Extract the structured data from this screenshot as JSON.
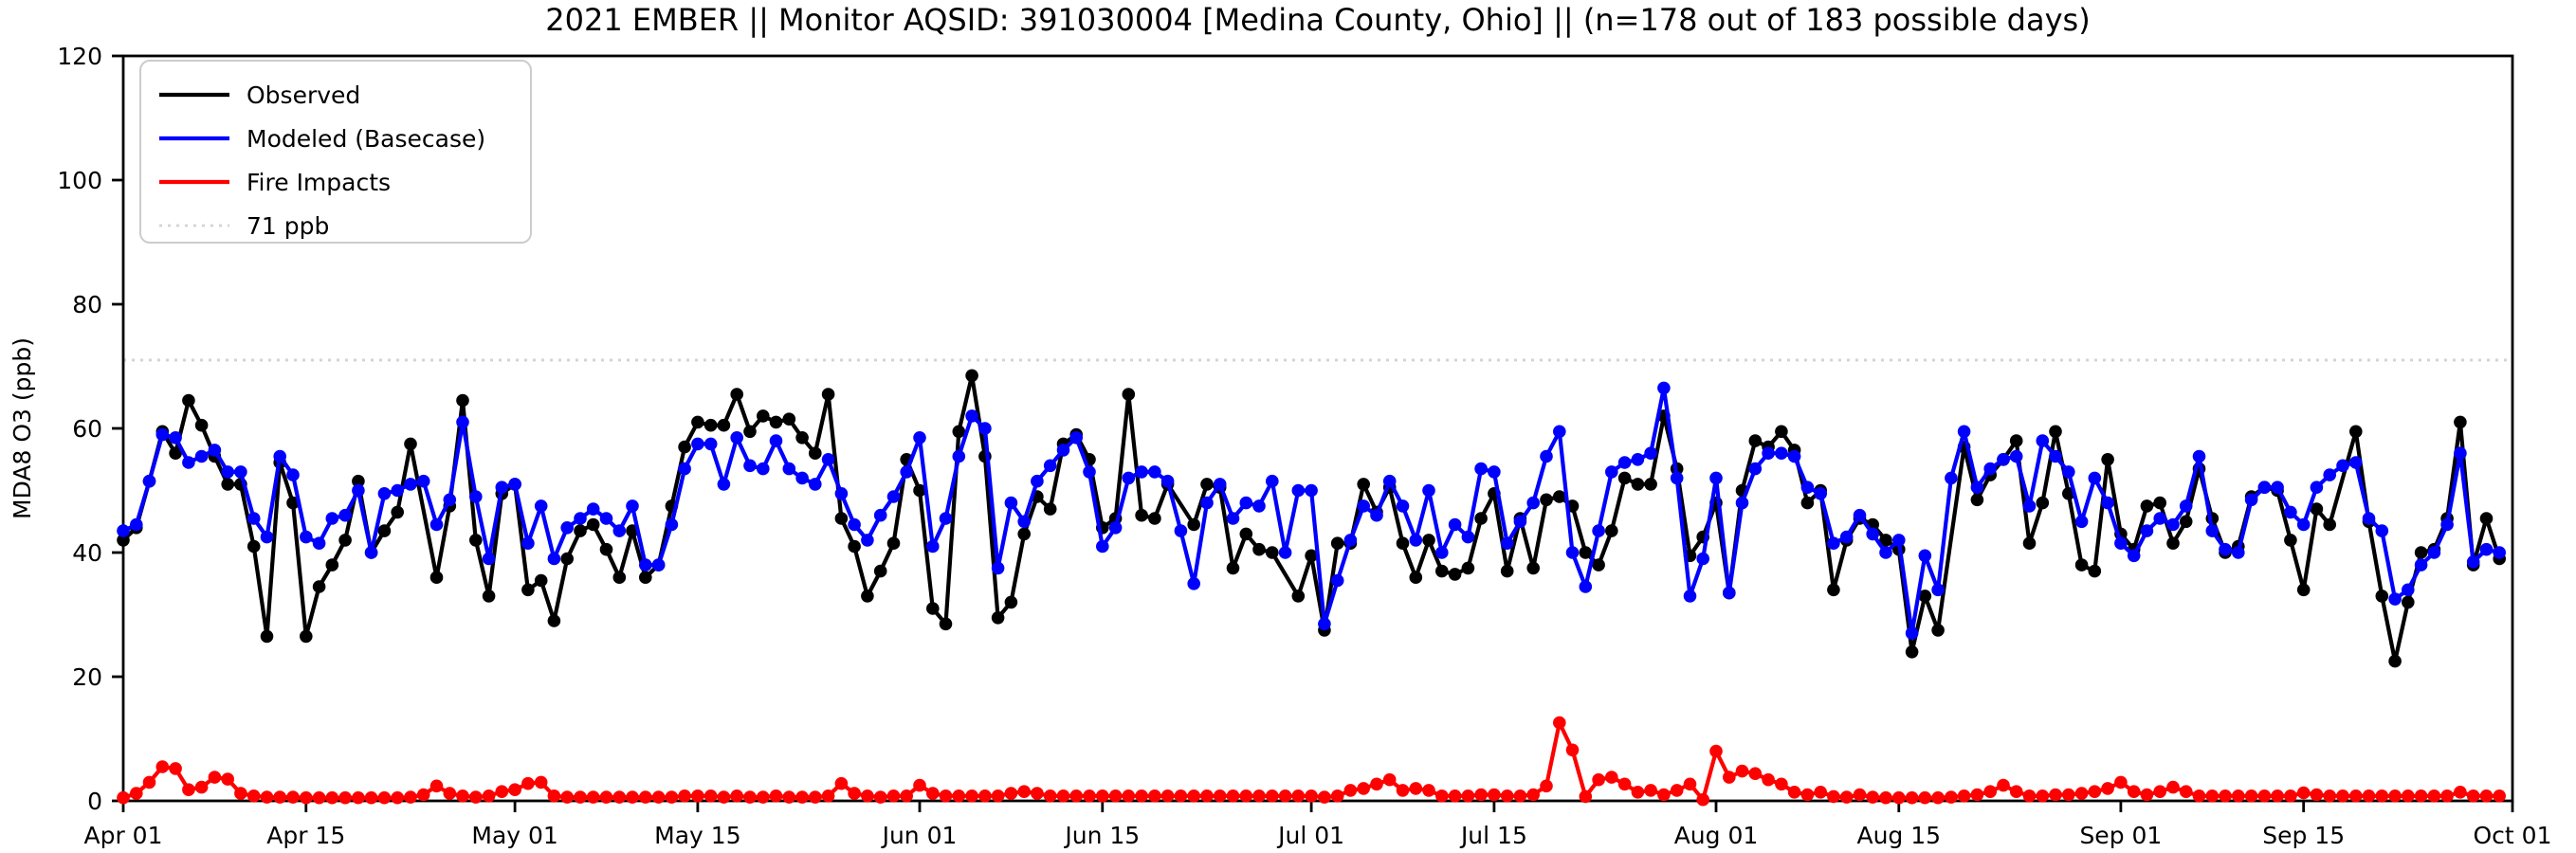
{
  "figure": {
    "title": "2021 EMBER || Monitor AQSID: 391030004 [Medina County, Ohio] || (n=178 out of 183 possible days)",
    "background_color": "#ffffff"
  },
  "chart_data": {
    "type": "line",
    "title": "2021 EMBER || Monitor AQSID: 391030004 [Medina County, Ohio] || (n=178 out of 183 possible days)",
    "xlabel": "",
    "ylabel": "MDA8 O3 (ppb)",
    "ylim": [
      0,
      120
    ],
    "yticks": [
      0,
      20,
      40,
      60,
      80,
      100,
      120
    ],
    "x_range_days": [
      0,
      183
    ],
    "x_tick_days": [
      0,
      14,
      30,
      44,
      61,
      75,
      91,
      105,
      122,
      136,
      153,
      167,
      183
    ],
    "x_tick_labels": [
      "Apr 01",
      "Apr 15",
      "May 01",
      "May 15",
      "Jun 01",
      "Jun 15",
      "Jul 01",
      "Jul 15",
      "Aug 01",
      "Aug 15",
      "Sep 01",
      "Sep 15",
      "Oct 01"
    ],
    "grid": false,
    "legend_position": "upper left",
    "threshold": {
      "label": "71 ppb",
      "value": 71,
      "color": "#d3d3d3",
      "style": "dotted"
    },
    "observed_days_note": {
      "n_observed": 178,
      "n_possible": 183
    },
    "series": [
      {
        "name": "Observed",
        "color": "#000000",
        "marker": "circle",
        "values": [
          42,
          44,
          51.5,
          59.5,
          56,
          64.5,
          60.5,
          55.5,
          51,
          51,
          41,
          26.5,
          54.5,
          48,
          26.5,
          34.5,
          38,
          42,
          51.5,
          40,
          43.5,
          46.5,
          57.5,
          null,
          36,
          47.5,
          64.5,
          42,
          33,
          49.5,
          51,
          34,
          35.5,
          29,
          39,
          43.5,
          44.5,
          40.5,
          36,
          43.5,
          36,
          38,
          47.5,
          57,
          61,
          60.5,
          60.5,
          65.5,
          59.5,
          62,
          61,
          61.5,
          58.5,
          56,
          65.5,
          45.5,
          41,
          33,
          37,
          41.5,
          55,
          50,
          31,
          28.5,
          59.5,
          68.5,
          55.5,
          29.5,
          32,
          43,
          49,
          47,
          57.5,
          59,
          55,
          44,
          45.5,
          65.5,
          46,
          45.5,
          51,
          null,
          44.5,
          51,
          50.5,
          37.5,
          43,
          40.5,
          40,
          null,
          33,
          39.5,
          27.5,
          41.5,
          41.5,
          51,
          46.5,
          50.5,
          41.5,
          36,
          42,
          37,
          36.5,
          37.5,
          45.5,
          49.5,
          37,
          45.5,
          37.5,
          48.5,
          49,
          47.5,
          40,
          38,
          43.5,
          52,
          51,
          51,
          62,
          53.5,
          39.5,
          42.5,
          48,
          33.5,
          50,
          58,
          57,
          59.5,
          56.5,
          48,
          50,
          34,
          42,
          45.5,
          44.5,
          42,
          40.5,
          24,
          33,
          27.5,
          null,
          57,
          48.5,
          52.5,
          55,
          58,
          41.5,
          48,
          59.5,
          49.5,
          38,
          37,
          55,
          43,
          40.5,
          47.5,
          48,
          41.5,
          45,
          53.5,
          45.5,
          40,
          41,
          49,
          50.5,
          50,
          42,
          34,
          47,
          44.5,
          null,
          59.5,
          45,
          33,
          22.5,
          32,
          40,
          40.5,
          45.5,
          61,
          38,
          45.5,
          39
        ]
      },
      {
        "name": "Modeled (Basecase)",
        "color": "#0000ff",
        "marker": "circle",
        "values": [
          43.5,
          44.5,
          51.5,
          59,
          58.5,
          54.5,
          55.5,
          56.5,
          53,
          53,
          45.5,
          42.5,
          55.5,
          52.5,
          42.5,
          41.5,
          45.5,
          46,
          50,
          40,
          49.5,
          50,
          51,
          51.5,
          44.5,
          48.5,
          61,
          49,
          39,
          50.5,
          51,
          41.5,
          47.5,
          39,
          44,
          45.5,
          47,
          45.5,
          43.5,
          47.5,
          38,
          38,
          44.5,
          53.5,
          57.5,
          57.5,
          51,
          58.5,
          54,
          53.5,
          58,
          53.5,
          52,
          51,
          55,
          49.5,
          44.5,
          42,
          46,
          49,
          53,
          58.5,
          41,
          45.5,
          55.5,
          62,
          60,
          37.5,
          48,
          45,
          51.5,
          54,
          56.5,
          58.5,
          53,
          41,
          44,
          52,
          53,
          53,
          51.5,
          43.5,
          35,
          48,
          51,
          45.5,
          48,
          47.5,
          51.5,
          40,
          50,
          50,
          28.5,
          35.5,
          42,
          47.5,
          46,
          51.5,
          47.5,
          42,
          50,
          40,
          44.5,
          42.5,
          53.5,
          53,
          41.5,
          45,
          48,
          55.5,
          59.5,
          40,
          34.5,
          43.5,
          53,
          54.5,
          55,
          56,
          66.5,
          52,
          33,
          39,
          52,
          33.5,
          48,
          53.5,
          56,
          56,
          55.5,
          50.5,
          49.5,
          41.5,
          42.5,
          46,
          43,
          40,
          42,
          27,
          39.5,
          34,
          52,
          59.5,
          50.5,
          53.5,
          55,
          55.5,
          47.5,
          58,
          55.5,
          53,
          45,
          52,
          48,
          41.5,
          39.5,
          43.5,
          45.5,
          44.5,
          47.5,
          55.5,
          43.5,
          40.5,
          40,
          48.5,
          50.5,
          50.5,
          46.5,
          44.5,
          50.5,
          52.5,
          54,
          54.5,
          45.5,
          43.5,
          32.5,
          34,
          38,
          40,
          44.5,
          56,
          38.5,
          40.5,
          40
        ]
      },
      {
        "name": "Fire Impacts",
        "color": "#ff0000",
        "marker": "circle",
        "values": [
          0.5,
          1.2,
          3,
          5.5,
          5.2,
          1.8,
          2.2,
          3.8,
          3.5,
          1.2,
          0.8,
          0.6,
          0.6,
          0.6,
          0.5,
          0.5,
          0.5,
          0.5,
          0.5,
          0.5,
          0.5,
          0.5,
          0.6,
          1,
          2.4,
          1.2,
          0.8,
          0.6,
          0.8,
          1.5,
          1.8,
          2.8,
          3,
          0.8,
          0.6,
          0.6,
          0.6,
          0.6,
          0.6,
          0.6,
          0.6,
          0.6,
          0.6,
          0.8,
          0.8,
          0.8,
          0.6,
          0.8,
          0.6,
          0.6,
          0.8,
          0.6,
          0.6,
          0.6,
          0.8,
          2.8,
          1.2,
          0.8,
          0.6,
          0.8,
          0.8,
          2.5,
          1.2,
          0.8,
          0.8,
          0.8,
          0.8,
          0.8,
          1.2,
          1.5,
          1.2,
          0.8,
          0.8,
          0.8,
          0.8,
          0.8,
          0.8,
          0.8,
          0.8,
          0.8,
          0.8,
          0.8,
          0.8,
          0.8,
          0.8,
          0.8,
          0.8,
          0.8,
          0.8,
          0.8,
          0.8,
          0.8,
          0.6,
          0.8,
          1.7,
          2,
          2.7,
          3.4,
          1.7,
          2,
          1.7,
          0.8,
          0.8,
          0.8,
          1,
          1,
          0.8,
          0.8,
          1,
          2.4,
          12.6,
          8.2,
          0.7,
          3.4,
          3.8,
          2.7,
          1.4,
          1.7,
          1,
          1.7,
          2.7,
          0.2,
          8,
          3.8,
          4.8,
          4.4,
          3.4,
          2.7,
          1.4,
          1,
          1.4,
          0.7,
          0.6,
          1,
          0.6,
          0.5,
          0.5,
          0.5,
          0.5,
          0.5,
          0.6,
          0.8,
          1,
          1.5,
          2.5,
          1.5,
          0.8,
          0.8,
          1,
          1,
          1.2,
          1.5,
          2,
          3,
          1.5,
          1,
          1.5,
          2.2,
          1.5,
          0.8,
          0.8,
          0.8,
          0.8,
          0.8,
          0.8,
          0.8,
          0.8,
          1.3,
          1,
          0.8,
          0.8,
          0.8,
          0.8,
          0.8,
          0.8,
          0.8,
          0.8,
          0.8,
          0.8,
          1.4,
          0.8,
          0.8,
          0.8
        ]
      }
    ]
  }
}
